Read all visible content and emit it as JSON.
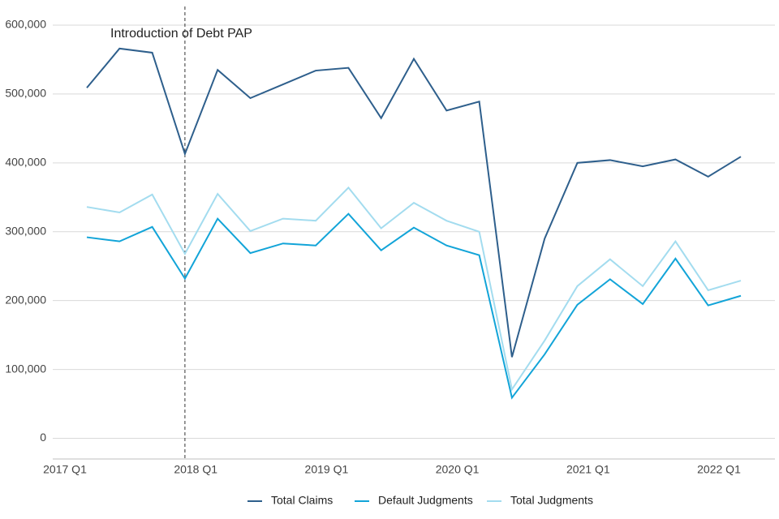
{
  "chart_data": {
    "type": "line",
    "categories": [
      "2017 Q1",
      null,
      null,
      null,
      "2018 Q1",
      null,
      null,
      null,
      "2019 Q1",
      null,
      null,
      null,
      "2020 Q1",
      null,
      null,
      null,
      "2021 Q1",
      null,
      null,
      null,
      "2022 Q1"
    ],
    "series": [
      {
        "name": "Total Claims",
        "color": "#2e5f8c",
        "values": [
          509000,
          566000,
          560000,
          413000,
          535000,
          494000,
          514000,
          534000,
          538000,
          465000,
          551000,
          476000,
          489000,
          118000,
          290000,
          400000,
          404000,
          395000,
          405000,
          380000,
          409000
        ]
      },
      {
        "name": "Default Judgments",
        "color": "#12a4d8",
        "values": [
          292000,
          286000,
          307000,
          232000,
          319000,
          269000,
          283000,
          280000,
          326000,
          273000,
          306000,
          280000,
          266000,
          59000,
          122000,
          194000,
          231000,
          195000,
          261000,
          193000,
          207000
        ]
      },
      {
        "name": "Total Judgments",
        "color": "#a3dcef",
        "values": [
          336000,
          328000,
          354000,
          268000,
          355000,
          301000,
          319000,
          316000,
          364000,
          305000,
          342000,
          316000,
          300000,
          71000,
          142000,
          221000,
          260000,
          221000,
          286000,
          215000,
          229000
        ]
      }
    ],
    "annotation": {
      "text": "Introduction of Debt PAP",
      "at": 3
    },
    "ylim": [
      -30000,
      600000
    ],
    "yticks": [
      0,
      {
        "value": 100000,
        "label": "100,000"
      },
      {
        "value": 200000,
        "label": "200,000"
      },
      {
        "value": 300000,
        "label": "300,000"
      },
      {
        "value": 400000,
        "label": "400,000"
      },
      {
        "value": 500000,
        "label": "500,000"
      },
      {
        "value": 600000,
        "label": "600,000"
      }
    ],
    "grid": true,
    "legend": "bottom"
  }
}
